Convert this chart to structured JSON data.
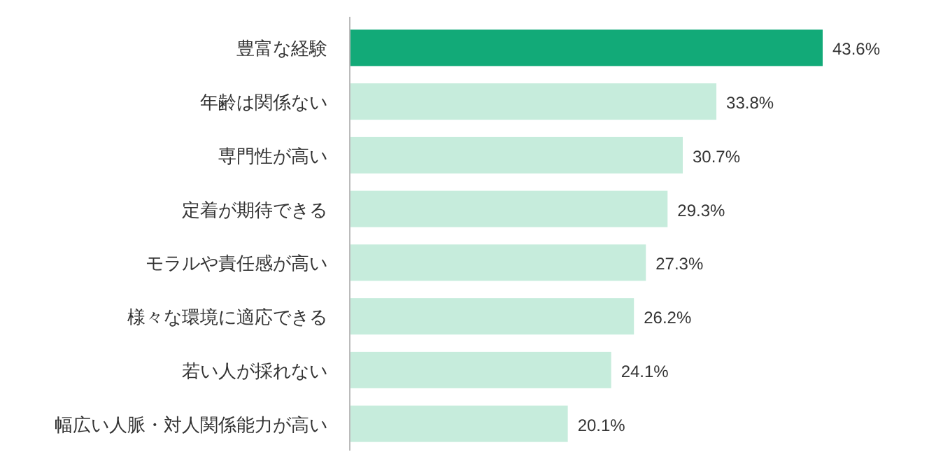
{
  "chart_data": {
    "type": "bar",
    "orientation": "horizontal",
    "categories": [
      "豊富な経験",
      "年齢は関係ない",
      "専門性が高い",
      "定着が期待できる",
      "モラルや責任感が高い",
      "様々な環境に適応できる",
      "若い人が採れない",
      "幅広い人脈・対人関係能力が高い"
    ],
    "values": [
      43.6,
      33.8,
      30.7,
      29.3,
      27.3,
      26.2,
      24.1,
      20.1
    ],
    "value_labels": [
      "43.6%",
      "33.8%",
      "30.7%",
      "29.3%",
      "27.3%",
      "26.2%",
      "24.1%",
      "20.1%"
    ],
    "colors": [
      "#12aa78",
      "#c6ecdc",
      "#c6ecdc",
      "#c6ecdc",
      "#c6ecdc",
      "#c6ecdc",
      "#c6ecdc",
      "#c6ecdc"
    ]
  }
}
